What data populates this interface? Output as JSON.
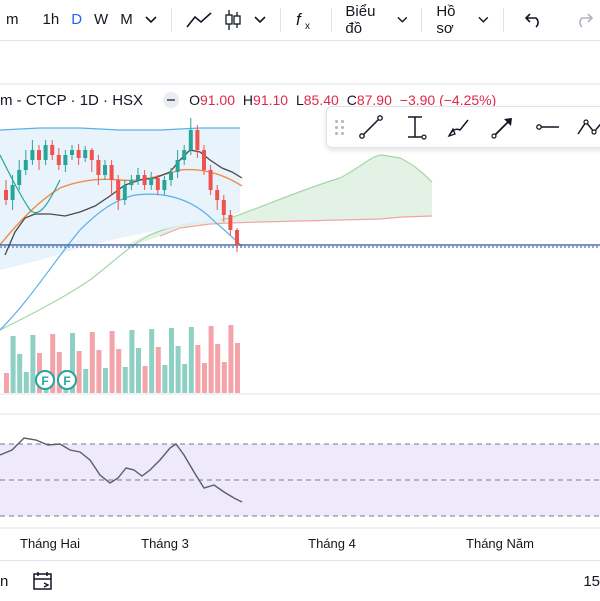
{
  "toolbar": {
    "intervals": [
      {
        "label": "m",
        "active": false
      },
      {
        "label": "1h",
        "active": false
      },
      {
        "label": "D",
        "active": true
      },
      {
        "label": "W",
        "active": false
      },
      {
        "label": "M",
        "active": false
      }
    ],
    "chart_type_label": "Biểu đồ",
    "profile_label": "Hồ sơ"
  },
  "legend": {
    "title": "m - CTCP · 1D · HSX",
    "o_label": "O",
    "o_value": "91.00",
    "h_label": "H",
    "h_value": "91.10",
    "l_label": "L",
    "l_value": "85.40",
    "c_label": "C",
    "c_value": "87.90",
    "change": "−3.90 (−4.25%)"
  },
  "colors": {
    "up": "#26a69a",
    "down": "#ef5350",
    "volume_up": "#8fd0c5",
    "volume_down": "#f4a3a8",
    "bollinger_fill": "#e6f2fb",
    "kumo_fill": "#e2f3e6",
    "price_line": "#2a4f9c",
    "osc_fill": "#efeafb",
    "osc_line": "#5b5d67",
    "accent": "#2962ff"
  },
  "drawing_tools": [
    "trend-line",
    "info-line",
    "brush",
    "arrow",
    "horizontal-ray",
    "path"
  ],
  "time_axis": {
    "labels": [
      {
        "text": "Tháng Hai"
      },
      {
        "text": "Tháng 3"
      },
      {
        "text": "Tháng 4"
      },
      {
        "text": "Tháng Năm"
      }
    ]
  },
  "bottom": {
    "left_label": "n",
    "right_label": "15"
  },
  "markers": [
    {
      "label": "F"
    },
    {
      "label": "F"
    }
  ]
}
